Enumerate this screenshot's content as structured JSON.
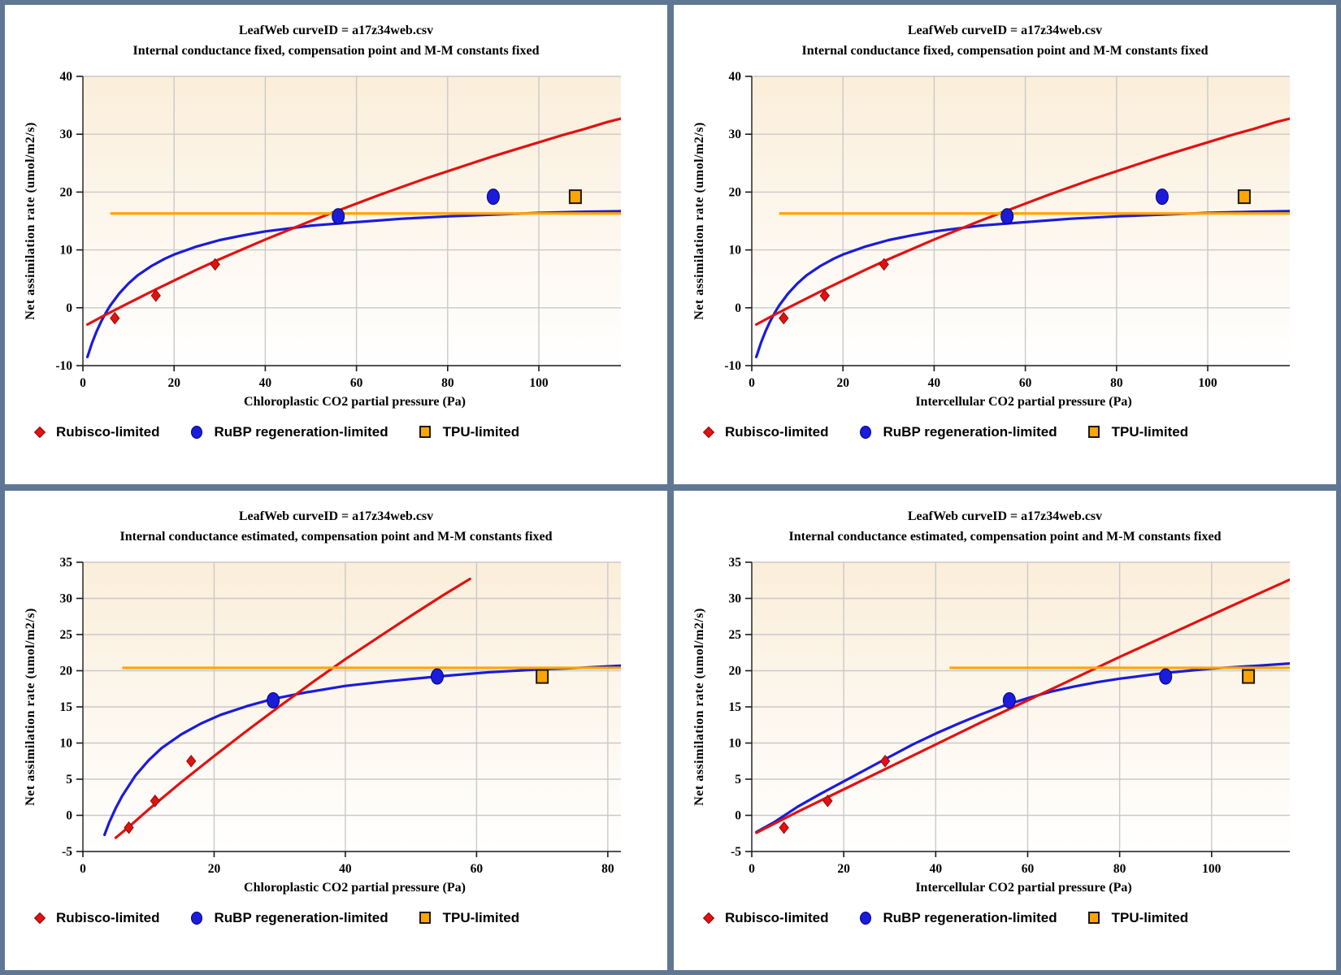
{
  "window": {
    "frame_color": "#5f7793",
    "panel_background": "#ffffff"
  },
  "colors": {
    "rubisco": "#e11212",
    "rubisco_border": "#8f0606",
    "rubp": "#1b1bdb",
    "rubp_border": "#00007a",
    "tpu": "#ffa502",
    "tpu_border": "#181818",
    "grid": "#c9c9c9",
    "axis": "#1a1a1a",
    "tick_text": "#000000",
    "plot_bg_top": "#fbeeda",
    "plot_bg_bottom": "#ffffff"
  },
  "legend": {
    "items": [
      {
        "label": "Rubisco-limited",
        "marker": "diamond-icon",
        "color": "#e11212",
        "border": "#8f0606"
      },
      {
        "label": "RuBP regeneration-limited",
        "marker": "circle-icon",
        "color": "#1b1bdb",
        "border": "#00007a"
      },
      {
        "label": "TPU-limited",
        "marker": "square-icon",
        "color": "#ffa502",
        "border": "#181818"
      }
    ]
  },
  "chart_data": [
    {
      "type": "scatter",
      "title": "LeafWeb curveID = a17z34web.csv",
      "subtitle": "Internal conductance fixed, compensation point and M-M constants fixed",
      "xlabel": "Chloroplastic CO2 partial pressure (Pa)",
      "ylabel": "Net assimilation rate (umol/m2/s)",
      "xlim": [
        0,
        118
      ],
      "ylim": [
        -10,
        40
      ],
      "xticks": [
        0,
        20,
        40,
        60,
        80,
        100
      ],
      "yticks": [
        -10,
        0,
        10,
        20,
        30,
        40
      ],
      "grid": true,
      "series": {
        "rubisco_points": [
          [
            7,
            -1.8
          ],
          [
            16,
            2.1
          ],
          [
            29,
            7.5
          ]
        ],
        "rubp_points": [
          [
            56,
            15.8
          ],
          [
            90,
            19.2
          ]
        ],
        "tpu_points": [
          [
            108,
            19.2
          ]
        ],
        "rubisco_curve": [
          [
            1,
            -2.9
          ],
          [
            5,
            -1.2
          ],
          [
            10,
            0.8
          ],
          [
            15,
            2.8
          ],
          [
            20,
            4.7
          ],
          [
            25,
            6.6
          ],
          [
            30,
            8.4
          ],
          [
            35,
            10.1
          ],
          [
            40,
            11.8
          ],
          [
            45,
            13.4
          ],
          [
            50,
            15.0
          ],
          [
            55,
            16.5
          ],
          [
            60,
            18.0
          ],
          [
            65,
            19.5
          ],
          [
            70,
            20.9
          ],
          [
            75,
            22.3
          ],
          [
            80,
            23.6
          ],
          [
            85,
            24.9
          ],
          [
            90,
            26.2
          ],
          [
            95,
            27.4
          ],
          [
            100,
            28.6
          ],
          [
            105,
            29.8
          ],
          [
            110,
            30.9
          ],
          [
            115,
            32.1
          ],
          [
            118,
            32.7
          ]
        ],
        "rubp_curve": [
          [
            1,
            -8.5
          ],
          [
            2,
            -6.1
          ],
          [
            3,
            -4.1
          ],
          [
            4,
            -2.4
          ],
          [
            5,
            -0.9
          ],
          [
            6,
            0.4
          ],
          [
            8,
            2.5
          ],
          [
            10,
            4.2
          ],
          [
            12,
            5.6
          ],
          [
            15,
            7.2
          ],
          [
            18,
            8.5
          ],
          [
            20,
            9.2
          ],
          [
            25,
            10.6
          ],
          [
            30,
            11.7
          ],
          [
            35,
            12.5
          ],
          [
            40,
            13.2
          ],
          [
            45,
            13.7
          ],
          [
            50,
            14.2
          ],
          [
            60,
            14.8
          ],
          [
            70,
            15.4
          ],
          [
            80,
            15.8
          ],
          [
            90,
            16.1
          ],
          [
            100,
            16.4
          ],
          [
            110,
            16.6
          ],
          [
            118,
            16.7
          ]
        ],
        "tpu_line": {
          "y": 16.3,
          "x_start": 6,
          "x_end": 118
        }
      }
    },
    {
      "type": "scatter",
      "title": "LeafWeb curveID = a17z34web.csv",
      "subtitle": "Internal conductance fixed, compensation point and M-M constants fixed",
      "xlabel": "Intercellular CO2 partial pressure (Pa)",
      "ylabel": "Net assimilation rate (umol/m2/s)",
      "xlim": [
        0,
        118
      ],
      "ylim": [
        -10,
        40
      ],
      "xticks": [
        0,
        20,
        40,
        60,
        80,
        100
      ],
      "yticks": [
        -10,
        0,
        10,
        20,
        30,
        40
      ],
      "grid": true,
      "series": {
        "rubisco_points": [
          [
            7,
            -1.8
          ],
          [
            16,
            2.1
          ],
          [
            29,
            7.5
          ]
        ],
        "rubp_points": [
          [
            56,
            15.8
          ],
          [
            90,
            19.2
          ]
        ],
        "tpu_points": [
          [
            108,
            19.2
          ]
        ],
        "rubisco_curve": [
          [
            1,
            -2.9
          ],
          [
            5,
            -1.2
          ],
          [
            10,
            0.8
          ],
          [
            15,
            2.8
          ],
          [
            20,
            4.7
          ],
          [
            25,
            6.6
          ],
          [
            30,
            8.4
          ],
          [
            35,
            10.1
          ],
          [
            40,
            11.8
          ],
          [
            45,
            13.4
          ],
          [
            50,
            15.0
          ],
          [
            55,
            16.5
          ],
          [
            60,
            18.0
          ],
          [
            65,
            19.5
          ],
          [
            70,
            20.9
          ],
          [
            75,
            22.3
          ],
          [
            80,
            23.6
          ],
          [
            85,
            24.9
          ],
          [
            90,
            26.2
          ],
          [
            95,
            27.4
          ],
          [
            100,
            28.6
          ],
          [
            105,
            29.8
          ],
          [
            110,
            30.9
          ],
          [
            115,
            32.1
          ],
          [
            118,
            32.7
          ]
        ],
        "rubp_curve": [
          [
            1,
            -8.5
          ],
          [
            2,
            -6.1
          ],
          [
            3,
            -4.1
          ],
          [
            4,
            -2.4
          ],
          [
            5,
            -0.9
          ],
          [
            6,
            0.4
          ],
          [
            8,
            2.5
          ],
          [
            10,
            4.2
          ],
          [
            12,
            5.6
          ],
          [
            15,
            7.2
          ],
          [
            18,
            8.5
          ],
          [
            20,
            9.2
          ],
          [
            25,
            10.6
          ],
          [
            30,
            11.7
          ],
          [
            35,
            12.5
          ],
          [
            40,
            13.2
          ],
          [
            45,
            13.7
          ],
          [
            50,
            14.2
          ],
          [
            60,
            14.8
          ],
          [
            70,
            15.4
          ],
          [
            80,
            15.8
          ],
          [
            90,
            16.1
          ],
          [
            100,
            16.4
          ],
          [
            110,
            16.6
          ],
          [
            118,
            16.7
          ]
        ],
        "tpu_line": {
          "y": 16.3,
          "x_start": 6,
          "x_end": 118
        }
      }
    },
    {
      "type": "scatter",
      "title": "LeafWeb curveID = a17z34web.csv",
      "subtitle": "Internal conductance estimated, compensation point and M-M constants fixed",
      "xlabel": "Chloroplastic CO2 partial pressure (Pa)",
      "ylabel": "Net assimilation rate (umol/m2/s)",
      "xlim": [
        0,
        82
      ],
      "ylim": [
        -5,
        35
      ],
      "xticks": [
        0,
        20,
        40,
        60,
        80
      ],
      "yticks": [
        -5,
        0,
        5,
        10,
        15,
        20,
        25,
        30,
        35
      ],
      "grid": true,
      "series": {
        "rubisco_points": [
          [
            7,
            -1.7
          ],
          [
            11,
            2.0
          ],
          [
            16.5,
            7.5
          ]
        ],
        "rubp_points": [
          [
            29,
            15.9
          ],
          [
            54,
            19.2
          ]
        ],
        "tpu_points": [
          [
            70,
            19.2
          ]
        ],
        "rubisco_curve": [
          [
            5,
            -3.1
          ],
          [
            7,
            -1.6
          ],
          [
            10,
            0.8
          ],
          [
            15,
            4.6
          ],
          [
            20,
            8.2
          ],
          [
            25,
            11.7
          ],
          [
            30,
            15.1
          ],
          [
            35,
            18.4
          ],
          [
            40,
            21.6
          ],
          [
            45,
            24.6
          ],
          [
            50,
            27.6
          ],
          [
            55,
            30.5
          ],
          [
            59,
            32.7
          ]
        ],
        "rubp_curve": [
          [
            3.3,
            -2.7
          ],
          [
            4,
            -1.0
          ],
          [
            5,
            1.0
          ],
          [
            6,
            2.7
          ],
          [
            8,
            5.5
          ],
          [
            10,
            7.6
          ],
          [
            12,
            9.3
          ],
          [
            15,
            11.2
          ],
          [
            18,
            12.7
          ],
          [
            21,
            13.9
          ],
          [
            25,
            15.1
          ],
          [
            29,
            16.1
          ],
          [
            34,
            17.0
          ],
          [
            40,
            17.9
          ],
          [
            46,
            18.5
          ],
          [
            54,
            19.2
          ],
          [
            62,
            19.8
          ],
          [
            70,
            20.2
          ],
          [
            76,
            20.4
          ],
          [
            82,
            20.7
          ]
        ],
        "tpu_line": {
          "y": 20.4,
          "x_start": 6,
          "x_end": 82
        }
      }
    },
    {
      "type": "scatter",
      "title": "LeafWeb curveID = a17z34web.csv",
      "subtitle": "Internal conductance estimated, compensation point and M-M constants fixed",
      "xlabel": "Intercellular CO2 partial pressure (Pa)",
      "ylabel": "Net assimilation rate (umol/m2/s)",
      "xlim": [
        0,
        117
      ],
      "ylim": [
        -5,
        35
      ],
      "xticks": [
        0,
        20,
        40,
        60,
        80,
        100
      ],
      "yticks": [
        -5,
        0,
        5,
        10,
        15,
        20,
        25,
        30,
        35
      ],
      "grid": true,
      "series": {
        "rubisco_points": [
          [
            7,
            -1.7
          ],
          [
            16.5,
            2.0
          ],
          [
            29,
            7.5
          ]
        ],
        "rubp_points": [
          [
            56,
            15.9
          ],
          [
            90,
            19.2
          ]
        ],
        "tpu_points": [
          [
            108,
            19.2
          ]
        ],
        "rubisco_curve": [
          [
            1,
            -2.4
          ],
          [
            10,
            0.5
          ],
          [
            20,
            3.6
          ],
          [
            30,
            6.7
          ],
          [
            40,
            9.8
          ],
          [
            50,
            12.9
          ],
          [
            60,
            15.9
          ],
          [
            70,
            18.9
          ],
          [
            80,
            21.9
          ],
          [
            90,
            24.8
          ],
          [
            100,
            27.7
          ],
          [
            110,
            30.6
          ],
          [
            117,
            32.6
          ]
        ],
        "rubp_curve": [
          [
            1,
            -2.3
          ],
          [
            5,
            -0.9
          ],
          [
            10,
            1.2
          ],
          [
            15,
            3.0
          ],
          [
            20,
            4.7
          ],
          [
            25,
            6.4
          ],
          [
            30,
            8.1
          ],
          [
            35,
            9.8
          ],
          [
            40,
            11.3
          ],
          [
            45,
            12.7
          ],
          [
            50,
            14.0
          ],
          [
            55,
            15.2
          ],
          [
            60,
            16.2
          ],
          [
            65,
            17.1
          ],
          [
            70,
            17.8
          ],
          [
            75,
            18.4
          ],
          [
            80,
            18.9
          ],
          [
            85,
            19.3
          ],
          [
            90,
            19.7
          ],
          [
            95,
            20.0
          ],
          [
            100,
            20.3
          ],
          [
            105,
            20.5
          ],
          [
            110,
            20.7
          ],
          [
            117,
            21.0
          ]
        ],
        "tpu_line": {
          "y": 20.4,
          "x_start": 43,
          "x_end": 117
        }
      }
    }
  ]
}
